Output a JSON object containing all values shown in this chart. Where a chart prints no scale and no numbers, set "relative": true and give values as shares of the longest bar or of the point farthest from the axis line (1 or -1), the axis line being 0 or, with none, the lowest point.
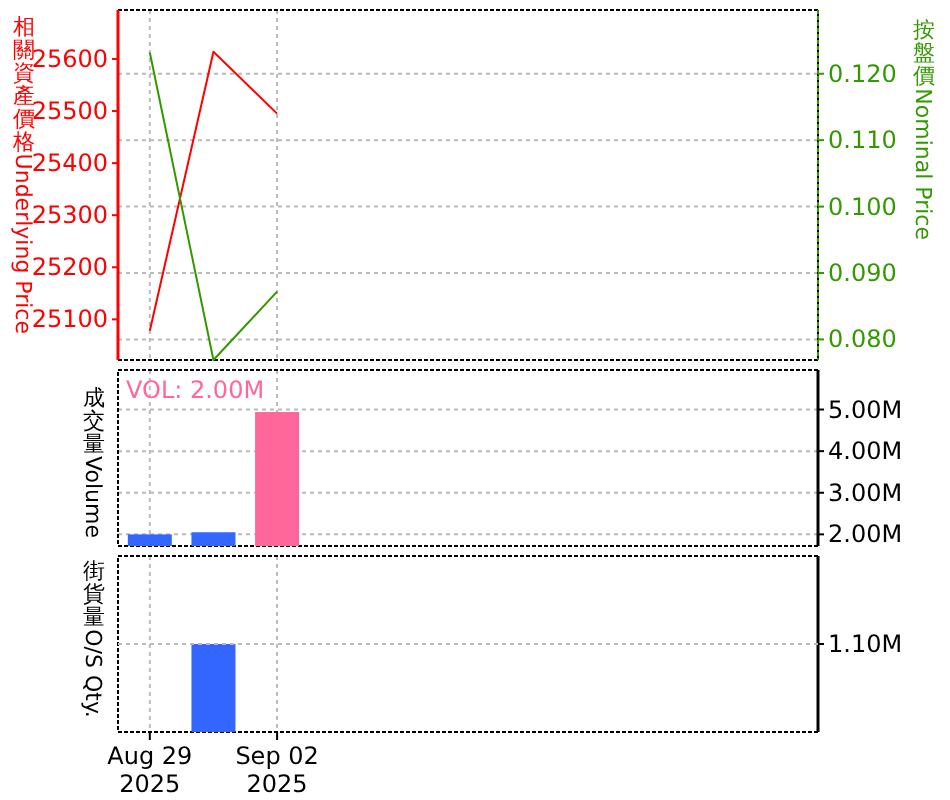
{
  "chart_data": [
    {
      "type": "line",
      "categories": [
        null,
        null,
        null,
        null,
        null,
        null,
        null,
        null,
        null,
        null,
        null
      ],
      "ylabel": "相關資產價格Underlying Price",
      "y2label": "按盤價Nominal Price",
      "series": [
        {
          "color": "#ff0000",
          "values": [
            25078,
            25614,
            25495,
            null,
            null,
            null,
            null,
            null,
            null,
            null,
            null
          ],
          "axis": "y"
        },
        {
          "color": "#339900",
          "values": [
            0.1232,
            0.0769,
            0.0872,
            null,
            null,
            null,
            null,
            null,
            null,
            null,
            null
          ],
          "axis": "y2"
        }
      ],
      "ylim": [
        25022,
        25694
      ],
      "yticks": [
        25100,
        25200,
        25300,
        25400,
        25500,
        25600
      ],
      "y2lim": [
        0.0769,
        0.1296
      ],
      "y2ticks": [
        {
          "value": 0.08,
          "label": "0.080"
        },
        {
          "value": 0.09,
          "label": "0.090"
        },
        {
          "value": 0.1,
          "label": "0.100"
        },
        {
          "value": 0.11,
          "label": "0.110"
        },
        {
          "value": 0.12,
          "label": "0.120"
        }
      ],
      "grid": true,
      "tick_labels": "y"
    },
    {
      "type": "bar",
      "categories": [
        null,
        null,
        null,
        null,
        null,
        null,
        null,
        null,
        null,
        null,
        null
      ],
      "ylabel": "成交量Volume",
      "values": [
        2.0,
        2.05,
        4.94,
        null,
        null,
        null,
        null,
        null,
        null,
        null,
        null
      ],
      "colors": [
        "#3366ff",
        "#3366ff",
        "#ff6699",
        null,
        null,
        null,
        null,
        null,
        null,
        null,
        null
      ],
      "ylim": [
        1.72,
        5.95
      ],
      "yticks": [
        {
          "value": 2,
          "label": "2.00M"
        },
        {
          "value": 3,
          "label": "3.00M"
        },
        {
          "value": 4,
          "label": "4.00M"
        },
        {
          "value": 5,
          "label": "5.00M"
        }
      ],
      "annotations": [
        "VOL: 2.00M"
      ],
      "grid": true,
      "tick_labels": "y"
    },
    {
      "type": "bar",
      "categories": [
        "Aug 29\n2025",
        null,
        "Sep 02\n2025",
        null,
        null,
        null,
        null,
        null,
        null,
        null,
        null
      ],
      "ylabel": "街貨量O/S Qty.",
      "values": [
        null,
        1,
        null,
        null,
        null,
        null,
        null,
        null,
        null,
        null,
        null
      ],
      "color": "#3366ff",
      "relative": true,
      "annotations": [
        "1.10M"
      ],
      "grid": true
    }
  ]
}
